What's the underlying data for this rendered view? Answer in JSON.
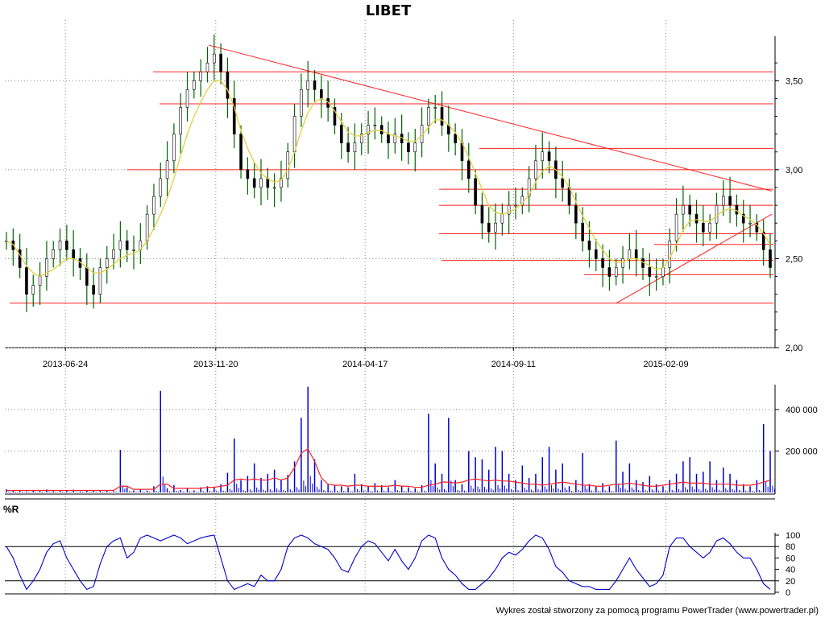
{
  "chart_data": [
    {
      "type": "line",
      "title": "LIBET",
      "x_tick_labels": [
        "2013-06-24",
        "2013-11-20",
        "2014-04-17",
        "2014-09-11",
        "2015-02-09"
      ],
      "y_tick_labels": [
        "2,00",
        "2,50",
        "3,00",
        "3,50"
      ],
      "ylim": [
        2.0,
        3.75
      ],
      "grid": true,
      "series": [
        {
          "style": "candles",
          "color": "#006400",
          "values": [
            2.6,
            2.55,
            2.45,
            2.3,
            2.35,
            2.4,
            2.5,
            2.55,
            2.6,
            2.55,
            2.5,
            2.45,
            2.35,
            2.3,
            2.45,
            2.5,
            2.55,
            2.6,
            2.55,
            2.55,
            2.6,
            2.75,
            2.85,
            2.95,
            3.05,
            3.2,
            3.35,
            3.45,
            3.5,
            3.55,
            3.6,
            3.65,
            3.55,
            3.4,
            3.2,
            3.0,
            2.95,
            2.9,
            2.95,
            2.9,
            2.9,
            2.95,
            3.1,
            3.3,
            3.45,
            3.5,
            3.45,
            3.4,
            3.35,
            3.25,
            3.15,
            3.1,
            3.15,
            3.2,
            3.25,
            3.25,
            3.2,
            3.15,
            3.2,
            3.15,
            3.1,
            3.15,
            3.25,
            3.35,
            3.35,
            3.25,
            3.2,
            3.15,
            3.05,
            2.95,
            2.8,
            2.7,
            2.65,
            2.7,
            2.75,
            2.8,
            2.8,
            2.85,
            2.95,
            3.05,
            3.1,
            3.05,
            2.95,
            2.9,
            2.8,
            2.7,
            2.6,
            2.55,
            2.5,
            2.45,
            2.4,
            2.45,
            2.5,
            2.55,
            2.5,
            2.45,
            2.4,
            2.4,
            2.45,
            2.6,
            2.75,
            2.8,
            2.75,
            2.7,
            2.65,
            2.7,
            2.8,
            2.85,
            2.8,
            2.75,
            2.7,
            2.7,
            2.65,
            2.55,
            2.45
          ]
        },
        {
          "style": "line",
          "color": "#e0d040",
          "values": [
            2.6,
            2.58,
            2.52,
            2.46,
            2.42,
            2.4,
            2.42,
            2.44,
            2.47,
            2.5,
            2.5,
            2.48,
            2.45,
            2.42,
            2.42,
            2.44,
            2.47,
            2.5,
            2.52,
            2.53,
            2.55,
            2.6,
            2.67,
            2.75,
            2.84,
            2.95,
            3.08,
            3.2,
            3.3,
            3.38,
            3.45,
            3.5,
            3.5,
            3.45,
            3.35,
            3.22,
            3.12,
            3.04,
            2.98,
            2.95,
            2.93,
            2.94,
            3.0,
            3.1,
            3.22,
            3.32,
            3.38,
            3.4,
            3.38,
            3.33,
            3.27,
            3.21,
            3.19,
            3.19,
            3.21,
            3.22,
            3.22,
            3.2,
            3.19,
            3.18,
            3.16,
            3.16,
            3.19,
            3.24,
            3.28,
            3.28,
            3.25,
            3.21,
            3.15,
            3.07,
            2.98,
            2.89,
            2.8,
            2.76,
            2.75,
            2.76,
            2.78,
            2.81,
            2.86,
            2.93,
            2.99,
            3.02,
            3.0,
            2.96,
            2.9,
            2.82,
            2.74,
            2.67,
            2.6,
            2.55,
            2.5,
            2.48,
            2.48,
            2.5,
            2.5,
            2.48,
            2.46,
            2.44,
            2.45,
            2.5,
            2.58,
            2.66,
            2.71,
            2.72,
            2.71,
            2.71,
            2.74,
            2.77,
            2.78,
            2.77,
            2.74,
            2.72,
            2.69,
            2.64,
            2.58
          ]
        }
      ],
      "horizontal_lines": [
        3.55,
        3.37,
        3.12,
        3.0,
        2.89,
        2.8,
        2.64,
        2.58,
        2.49,
        2.41,
        2.25
      ],
      "trendlines": [
        {
          "from": [
            "2013-11-13",
            3.7
          ],
          "to": [
            "2015-05-25",
            2.88
          ]
        },
        {
          "from": [
            "2014-12-22",
            2.25
          ],
          "to": [
            "2015-05-25",
            2.75
          ]
        }
      ]
    },
    {
      "type": "bar",
      "y_tick_labels": [
        "200 000",
        "400 000"
      ],
      "ylim": [
        0,
        520000
      ],
      "grid": true,
      "series": [
        {
          "style": "bars",
          "color": "#0000cc",
          "values": [
            15000,
            8000,
            12000,
            6000,
            10000,
            9000,
            14000,
            7000,
            11000,
            8000,
            13000,
            6000,
            9000,
            12000,
            10000,
            8000,
            7000,
            205000,
            25000,
            10000,
            15000,
            9000,
            30000,
            490000,
            20000,
            35000,
            12000,
            18000,
            10000,
            25000,
            30000,
            28000,
            40000,
            95000,
            260000,
            60000,
            80000,
            140000,
            70000,
            90000,
            110000,
            60000,
            85000,
            150000,
            360000,
            510000,
            160000,
            60000,
            40000,
            35000,
            30000,
            25000,
            90000,
            40000,
            30000,
            45000,
            35000,
            25000,
            60000,
            30000,
            25000,
            20000,
            35000,
            380000,
            140000,
            90000,
            360000,
            60000,
            40000,
            200000,
            170000,
            160000,
            110000,
            220000,
            200000,
            90000,
            60000,
            130000,
            70000,
            90000,
            170000,
            220000,
            110000,
            140000,
            30000,
            60000,
            190000,
            40000,
            30000,
            45000,
            30000,
            250000,
            100000,
            140000,
            60000,
            50000,
            80000,
            40000,
            30000,
            60000,
            90000,
            150000,
            170000,
            90000,
            100000,
            150000,
            60000,
            120000,
            90000,
            60000,
            40000,
            30000,
            60000,
            330000,
            200000
          ]
        },
        {
          "style": "line",
          "color": "#ff2020",
          "values": [
            10000,
            10000,
            10000,
            10000,
            10000,
            10000,
            10000,
            10000,
            10000,
            10000,
            10000,
            10000,
            10000,
            10000,
            10000,
            10000,
            10000,
            30000,
            30000,
            15000,
            15000,
            15000,
            15000,
            40000,
            40000,
            20000,
            20000,
            20000,
            20000,
            20000,
            25000,
            25000,
            30000,
            35000,
            60000,
            65000,
            60000,
            65000,
            60000,
            60000,
            70000,
            60000,
            70000,
            120000,
            190000,
            210000,
            150000,
            70000,
            40000,
            35000,
            35000,
            30000,
            35000,
            35000,
            30000,
            30000,
            30000,
            30000,
            35000,
            30000,
            30000,
            25000,
            25000,
            35000,
            40000,
            50000,
            50000,
            45000,
            50000,
            60000,
            65000,
            60000,
            55000,
            60000,
            55000,
            55000,
            50000,
            45000,
            40000,
            40000,
            35000,
            40000,
            45000,
            50000,
            45000,
            40000,
            35000,
            35000,
            30000,
            30000,
            35000,
            40000,
            40000,
            45000,
            40000,
            35000,
            30000,
            30000,
            35000,
            40000,
            45000,
            50000,
            45000,
            45000,
            45000,
            40000,
            40000,
            40000,
            40000,
            35000,
            35000,
            35000,
            40000,
            50000,
            60000
          ]
        }
      ]
    },
    {
      "type": "line",
      "title": "%R",
      "y_tick_labels": [
        "0",
        "20",
        "40",
        "60",
        "80",
        "100"
      ],
      "ylim": [
        0,
        100
      ],
      "reference_lines": [
        20,
        80
      ],
      "series": [
        {
          "style": "line",
          "color": "#0000cc",
          "values": [
            80,
            60,
            30,
            5,
            20,
            40,
            70,
            85,
            90,
            60,
            40,
            20,
            5,
            10,
            50,
            80,
            90,
            95,
            60,
            70,
            95,
            100,
            95,
            90,
            95,
            100,
            95,
            85,
            90,
            95,
            98,
            100,
            60,
            20,
            5,
            10,
            15,
            10,
            30,
            20,
            20,
            40,
            80,
            95,
            100,
            95,
            85,
            80,
            75,
            60,
            40,
            35,
            60,
            80,
            90,
            85,
            70,
            55,
            75,
            55,
            40,
            60,
            90,
            100,
            95,
            60,
            40,
            30,
            15,
            5,
            5,
            15,
            25,
            40,
            60,
            70,
            65,
            75,
            90,
            100,
            95,
            75,
            45,
            35,
            20,
            15,
            10,
            10,
            5,
            5,
            5,
            20,
            40,
            60,
            40,
            25,
            10,
            15,
            30,
            80,
            95,
            95,
            80,
            70,
            60,
            70,
            90,
            95,
            85,
            70,
            60,
            60,
            40,
            15,
            5
          ]
        }
      ]
    }
  ],
  "footer": "Wykres został stworzony za pomocą programu PowerTrader (www.powertrader.pl)"
}
